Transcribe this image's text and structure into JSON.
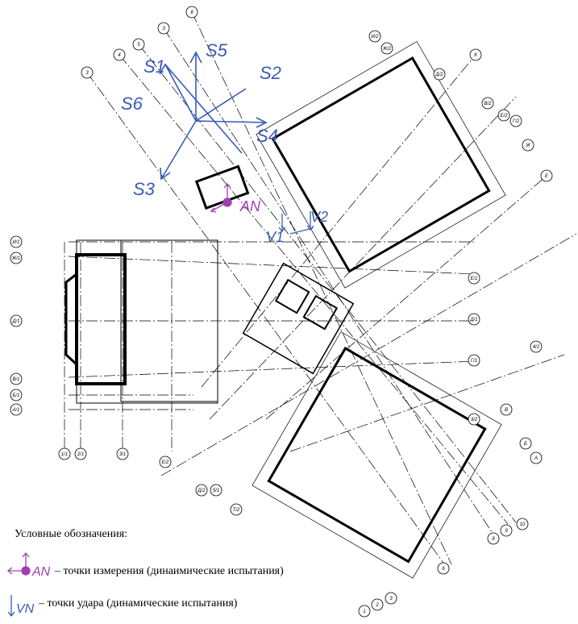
{
  "wind_rose": {
    "labels": [
      "S1",
      "S5",
      "S2",
      "S6",
      "S4",
      "S3"
    ]
  },
  "points": {
    "measure": "AN",
    "impact_1": "V1",
    "impact_2": "V2"
  },
  "axis_labels": [
    "8",
    "3",
    "5",
    "4",
    "3",
    "И/2",
    "Ж/2",
    "К",
    "Д/2",
    "В/2",
    "Е/2",
    "Г/2",
    "Ж",
    "Е",
    "Е/1",
    "Д/1",
    "Г/1",
    "4/2",
    "В",
    "3/2",
    "Б",
    "А",
    "10",
    "9",
    "8",
    "6",
    "3",
    "2",
    "1",
    "Т/2",
    "5/1",
    "Д/2",
    "Е/2",
    "3/1",
    "2/1",
    "1/1",
    "И/1",
    "Ж/1",
    "Д/1",
    "В/1",
    "Б/1",
    "А/1"
  ],
  "legend": {
    "title": "Условные обозначения:",
    "items": [
      {
        "symbol": "AN",
        "text": "– точки измерения (динаимические испытания)"
      },
      {
        "symbol": "VN",
        "text": "– точки удара (динамические испытания)"
      }
    ]
  }
}
